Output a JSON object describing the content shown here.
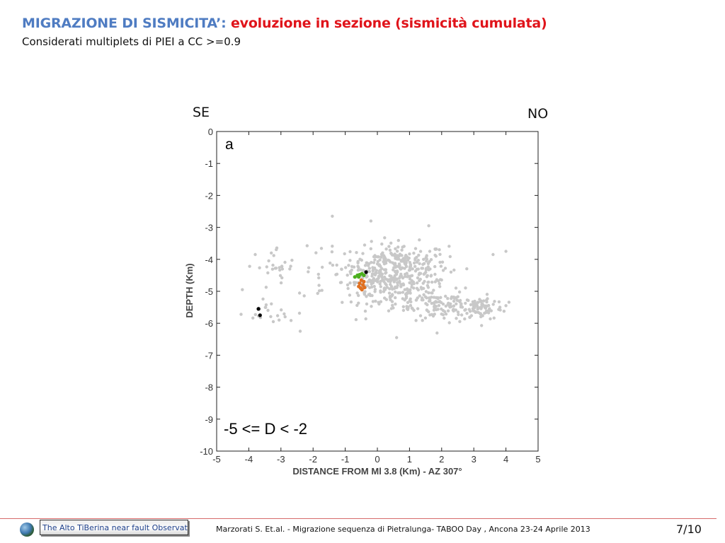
{
  "header": {
    "title_part1": "MIGRAZIONE DI SISMICITA’:",
    "title_part2": " evoluzione in sezione (sismicità cumulata)",
    "subtitle": "Considerati multiplets di PIEI a CC >=0.9"
  },
  "labels": {
    "left": "SE",
    "right": "NO"
  },
  "footer": {
    "logo_text": "The Alto TiBerina near fault Observatory",
    "citation": "Marzorati S.  Et.al. - Migrazione sequenza di Pietralunga- TABOO Day , Ancona 23-24 Aprile 2013",
    "page": "7/10"
  },
  "colors": {
    "title_blue": "#4f7cc2",
    "title_red": "#e0141b",
    "background_events": "#c8c8c8",
    "multiplet_green": "#4caf1e",
    "multiplet_orange": "#e07020",
    "multiplet_black": "#000000"
  },
  "chart_data": {
    "type": "scatter",
    "xlabel": "DISTANCE FROM Ml 3.8 (Km) - AZ 307°",
    "ylabel": "DEPTH (Km)",
    "xlim": [
      -5,
      5
    ],
    "ylim": [
      -10,
      0
    ],
    "xticks": [
      -5,
      -4,
      -3,
      -2,
      -1,
      0,
      1,
      2,
      3,
      4,
      5
    ],
    "yticks": [
      0,
      -1,
      -2,
      -3,
      -4,
      -5,
      -6,
      -7,
      -8,
      -9,
      -10
    ],
    "grid": false,
    "panel_label": "a",
    "annotation": "-5 <= D < -2",
    "series": [
      {
        "color": "#c8c8c8",
        "clusters": [
          {
            "cx": 0.7,
            "cy": -4.2,
            "sx": 0.75,
            "sy": 0.35,
            "n": 260
          },
          {
            "cx": -0.2,
            "cy": -4.7,
            "sx": 0.45,
            "sy": 0.35,
            "n": 110
          },
          {
            "cx": 1.0,
            "cy": -5.1,
            "sx": 0.6,
            "sy": 0.3,
            "n": 120
          },
          {
            "cx": 2.2,
            "cy": -5.5,
            "sx": 0.6,
            "sy": 0.2,
            "n": 110
          },
          {
            "cx": 3.3,
            "cy": -5.5,
            "sx": 0.3,
            "sy": 0.2,
            "n": 60
          },
          {
            "cx": -3.1,
            "cy": -4.3,
            "sx": 0.3,
            "sy": 0.35,
            "n": 25
          },
          {
            "cx": -3.7,
            "cy": -5.6,
            "sx": 0.25,
            "sy": 0.2,
            "n": 14
          },
          {
            "cx": -2.9,
            "cy": -5.7,
            "sx": 0.2,
            "sy": 0.15,
            "n": 8
          },
          {
            "cx": -1.8,
            "cy": -4.7,
            "sx": 0.25,
            "sy": 0.3,
            "n": 10
          },
          {
            "cx": -1.4,
            "cy": -3.9,
            "sx": 0.3,
            "sy": 0.3,
            "n": 12
          }
        ],
        "points": [
          {
            "x": -1.4,
            "y": -2.65
          },
          {
            "x": -0.2,
            "y": -2.8
          },
          {
            "x": 1.6,
            "y": -2.95
          },
          {
            "x": 4.0,
            "y": -3.75
          },
          {
            "x": 3.6,
            "y": -3.85
          },
          {
            "x": -3.8,
            "y": -3.85
          },
          {
            "x": -3.3,
            "y": -3.8
          },
          {
            "x": -4.2,
            "y": -4.95
          },
          {
            "x": -2.4,
            "y": -6.25
          },
          {
            "x": 0.6,
            "y": -6.45
          },
          {
            "x": 4.0,
            "y": -5.45
          }
        ]
      },
      {
        "color": "#4caf1e",
        "points": [
          {
            "x": -0.7,
            "y": -4.55
          },
          {
            "x": -0.62,
            "y": -4.5
          },
          {
            "x": -0.55,
            "y": -4.48
          },
          {
            "x": -0.48,
            "y": -4.45
          },
          {
            "x": -0.42,
            "y": -4.5
          },
          {
            "x": -0.58,
            "y": -4.55
          }
        ]
      },
      {
        "color": "#e07020",
        "points": [
          {
            "x": -0.55,
            "y": -4.75
          },
          {
            "x": -0.5,
            "y": -4.65
          },
          {
            "x": -0.45,
            "y": -4.8
          },
          {
            "x": -0.52,
            "y": -4.9
          },
          {
            "x": -0.42,
            "y": -4.7
          },
          {
            "x": -0.58,
            "y": -4.85
          },
          {
            "x": -0.48,
            "y": -4.95
          },
          {
            "x": -0.4,
            "y": -4.88
          }
        ]
      },
      {
        "color": "#000000",
        "points": [
          {
            "x": -0.35,
            "y": -4.4
          },
          {
            "x": -3.7,
            "y": -5.55
          },
          {
            "x": -3.65,
            "y": -5.75
          }
        ]
      }
    ]
  }
}
